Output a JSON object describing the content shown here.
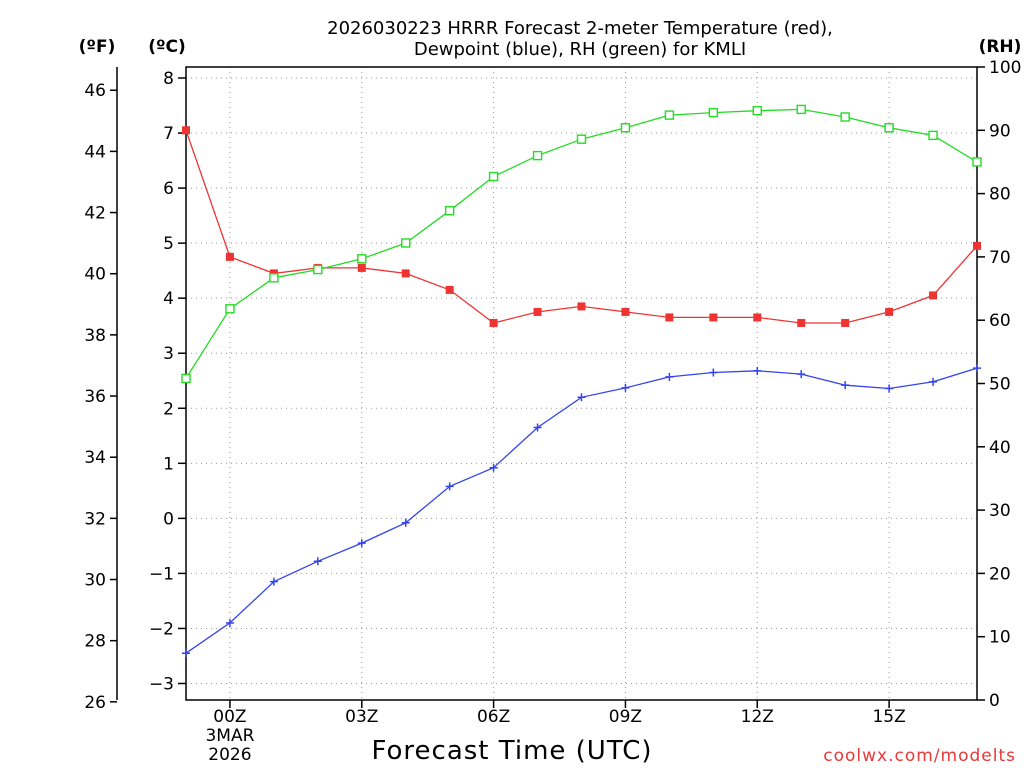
{
  "chart_data": {
    "type": "line",
    "title_line1": "2026030223 HRRR Forecast 2-meter Temperature (red),",
    "title_line2": "Dewpoint (blue), RH (green) for KMLI",
    "xlabel": "Forecast Time (UTC)",
    "left_outer_unit": "(ºF)",
    "left_inner_unit": "(ºC)",
    "right_unit": "(RH)",
    "credit": "coolwx.com/modelts",
    "x_hours": [
      -1,
      0,
      1,
      2,
      3,
      4,
      5,
      6,
      7,
      8,
      9,
      10,
      11,
      12,
      13,
      14,
      15,
      16,
      17
    ],
    "x_ticks": [
      {
        "hour": 0,
        "label": "00Z",
        "date1": "3MAR",
        "date2": "2026"
      },
      {
        "hour": 3,
        "label": "03Z"
      },
      {
        "hour": 6,
        "label": "06Z"
      },
      {
        "hour": 9,
        "label": "09Z"
      },
      {
        "hour": 12,
        "label": "12Z"
      },
      {
        "hour": 15,
        "label": "15Z"
      }
    ],
    "x_range": [
      -1,
      17
    ],
    "c_range": [
      -3.3,
      8.2
    ],
    "c_ticks": [
      "−3",
      "−2",
      "−1",
      "0",
      "1",
      "2",
      "3",
      "4",
      "5",
      "6",
      "7",
      "8"
    ],
    "f_ticks": [
      "26",
      "28",
      "30",
      "32",
      "34",
      "36",
      "38",
      "40",
      "42",
      "44",
      "46"
    ],
    "rh_range": [
      0,
      100
    ],
    "rh_ticks": [
      "0",
      "10",
      "20",
      "30",
      "40",
      "50",
      "60",
      "70",
      "80",
      "90",
      "100"
    ],
    "series": [
      {
        "name": "Temperature",
        "unit": "C",
        "color": "#ee3333",
        "marker": "filled-square",
        "values": [
          7.05,
          4.75,
          4.45,
          4.55,
          4.55,
          4.45,
          4.15,
          3.55,
          3.75,
          3.85,
          3.75,
          3.65,
          3.65,
          3.65,
          3.55,
          3.55,
          3.75,
          4.05,
          4.95
        ]
      },
      {
        "name": "Dewpoint",
        "unit": "C",
        "color": "#3344ee",
        "marker": "plus",
        "values": [
          -2.45,
          -1.9,
          -1.15,
          -0.78,
          -0.45,
          -0.08,
          0.58,
          0.92,
          1.65,
          2.2,
          2.37,
          2.57,
          2.65,
          2.68,
          2.62,
          2.42,
          2.36,
          2.48,
          2.73
        ]
      },
      {
        "name": "RH",
        "unit": "%",
        "color": "#22dd22",
        "marker": "open-square",
        "values": [
          50.8,
          61.8,
          66.7,
          68.0,
          69.7,
          72.2,
          77.3,
          82.7,
          86.0,
          88.6,
          90.4,
          92.4,
          92.8,
          93.1,
          93.3,
          92.1,
          90.4,
          89.2,
          85.0
        ]
      }
    ]
  }
}
